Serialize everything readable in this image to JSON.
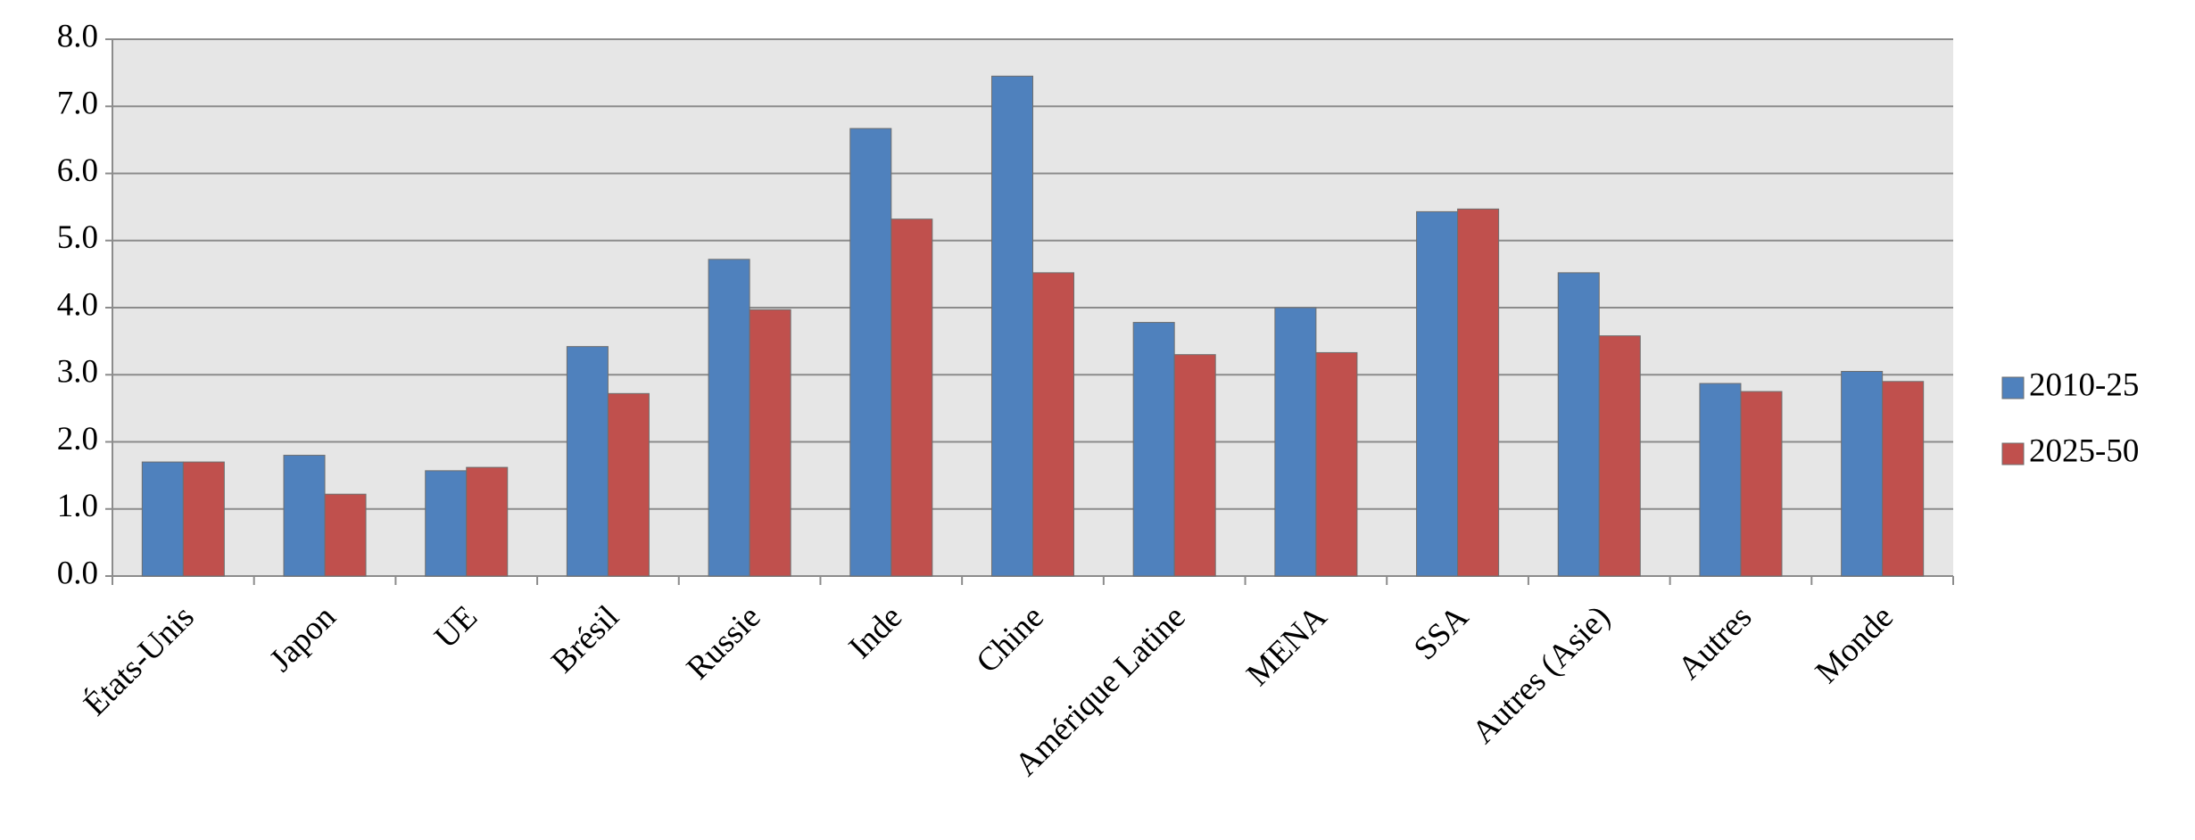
{
  "chart_data": {
    "type": "bar",
    "categories": [
      "États-Unis",
      "Japon",
      "UE",
      "Brésil",
      "Russie",
      "Inde",
      "Chine",
      "Amérique Latine",
      "MENA",
      "SSA",
      "Autres (Asie)",
      "Autres",
      "Monde"
    ],
    "series": [
      {
        "name": "2010-25",
        "color": "#4f81bd",
        "values": [
          1.7,
          1.8,
          1.57,
          3.42,
          4.72,
          6.67,
          7.45,
          3.78,
          4.0,
          5.43,
          4.52,
          2.87,
          3.05
        ]
      },
      {
        "name": "2025-50",
        "color": "#c0504d",
        "values": [
          1.7,
          1.22,
          1.62,
          2.72,
          3.97,
          5.32,
          4.52,
          3.3,
          3.33,
          5.47,
          3.58,
          2.75,
          2.9
        ]
      }
    ],
    "ylim": [
      0,
      8
    ],
    "yticks": [
      {
        "value": 0,
        "label": "0.0"
      },
      {
        "value": 1,
        "label": "1.0"
      },
      {
        "value": 2,
        "label": "2.0"
      },
      {
        "value": 3,
        "label": "3.0"
      },
      {
        "value": 4,
        "label": "4.0"
      },
      {
        "value": 5,
        "label": "5.0"
      },
      {
        "value": 6,
        "label": "6.0"
      },
      {
        "value": 7,
        "label": "7.0"
      },
      {
        "value": 8,
        "label": "8.0"
      }
    ],
    "grid": true,
    "legend": "right"
  }
}
